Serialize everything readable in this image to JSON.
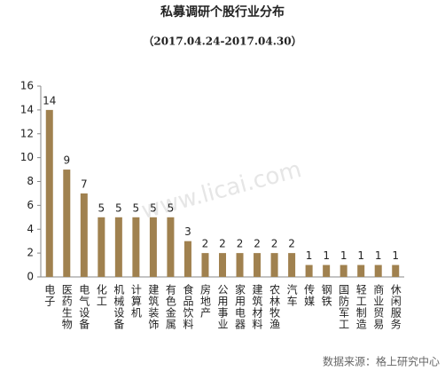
{
  "chart_data": {
    "type": "bar",
    "title": "私募调研个股行业分布",
    "subtitle": "（2017.04.24-2017.04.30）",
    "categories": [
      "电子",
      "医药生物",
      "电气设备",
      "化工",
      "机械设备",
      "计算机",
      "建筑装饰",
      "有色金属",
      "食品饮料",
      "房地产",
      "公用事业",
      "家用电器",
      "建筑材料",
      "农林牧渔",
      "汽车",
      "传媒",
      "钢铁",
      "国防军工",
      "轻工制造",
      "商业贸易",
      "休闲服务"
    ],
    "values": [
      14,
      9,
      7,
      5,
      5,
      5,
      5,
      5,
      3,
      2,
      2,
      2,
      2,
      2,
      2,
      1,
      1,
      1,
      1,
      1,
      1
    ],
    "color": "#a0814f",
    "ylim": [
      0,
      16
    ],
    "yticks": [
      0,
      2,
      4,
      6,
      8,
      10,
      12,
      14,
      16
    ],
    "source": "数据来源：格上研究中心",
    "watermark": "www.licai.com"
  }
}
